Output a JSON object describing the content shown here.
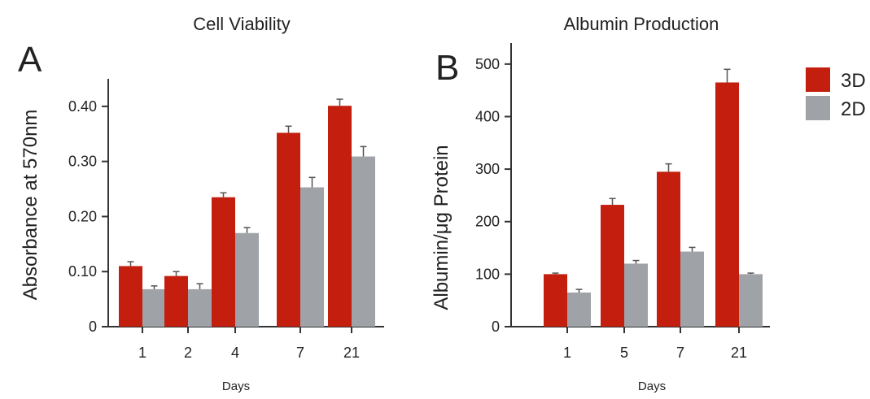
{
  "chart_data": [
    {
      "type": "bar",
      "panel": "A",
      "title": "Cell Viability",
      "xlabel": "Days",
      "ylabel": "Absorbance at 570nm",
      "categories": [
        "1",
        "2",
        "4",
        "7",
        "21"
      ],
      "series": [
        {
          "name": "3D",
          "values": [
            0.11,
            0.092,
            0.235,
            0.352,
            0.401
          ],
          "errors": [
            0.008,
            0.008,
            0.008,
            0.012,
            0.012
          ]
        },
        {
          "name": "2D",
          "values": [
            0.068,
            0.068,
            0.17,
            0.253,
            0.309
          ],
          "errors": [
            0.006,
            0.01,
            0.01,
            0.018,
            0.018
          ]
        }
      ],
      "ylim": [
        0,
        0.45
      ],
      "yticks": [
        "0",
        "0.10",
        "0.20",
        "0.30",
        "0.40"
      ],
      "ytick_values": [
        0,
        0.1,
        0.2,
        0.3,
        0.4
      ],
      "grid": false
    },
    {
      "type": "bar",
      "panel": "B",
      "title": "Albumin Production",
      "xlabel": "Days",
      "ylabel": "Albumin/μg Protein",
      "categories": [
        "1",
        "5",
        "7",
        "21"
      ],
      "series": [
        {
          "name": "3D",
          "values": [
            100,
            232,
            295,
            465
          ],
          "errors": [
            2,
            12,
            15,
            25
          ]
        },
        {
          "name": "2D",
          "values": [
            65,
            120,
            143,
            100
          ],
          "errors": [
            6,
            6,
            8,
            2
          ]
        }
      ],
      "ylim": [
        0,
        540
      ],
      "yticks": [
        "0",
        "100",
        "200",
        "300",
        "400",
        "500"
      ],
      "ytick_values": [
        0,
        100,
        200,
        300,
        400,
        500
      ],
      "grid": false
    }
  ],
  "legend": {
    "placement": "top-right",
    "items": [
      {
        "label": "3D",
        "color": "#c41e0f"
      },
      {
        "label": "2D",
        "color": "#9fa2a7"
      }
    ]
  },
  "colors": {
    "3D": "#c41e0f",
    "2D": "#9fa2a7",
    "axis": "#333333",
    "error_bar": "#555555"
  }
}
